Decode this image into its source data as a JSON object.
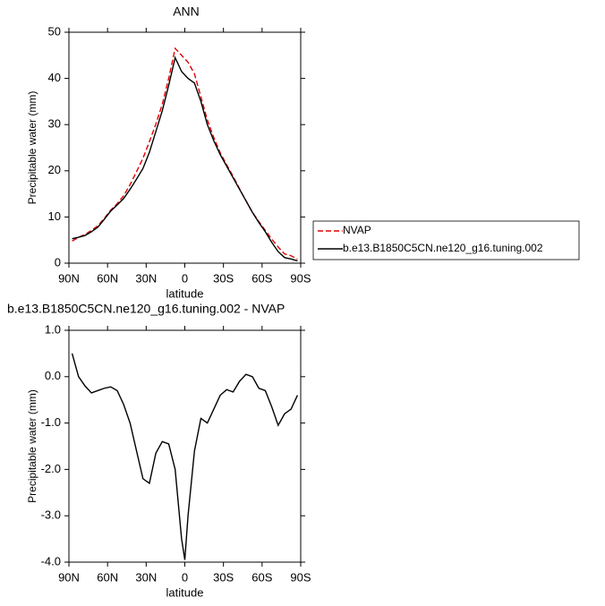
{
  "chart_data": [
    {
      "type": "line",
      "title": "ANN",
      "x_label": "latitude",
      "y_label": "Precipitable water (mm)",
      "x": [
        87.5,
        82.5,
        77.5,
        72.5,
        67.5,
        62.5,
        57.5,
        52.5,
        47.5,
        42.5,
        37.5,
        32.5,
        27.5,
        22.5,
        17.5,
        12.5,
        7.5,
        2.5,
        -2.5,
        -7.5,
        -12.5,
        -17.5,
        -22.5,
        -27.5,
        -32.5,
        -37.5,
        -42.5,
        -47.5,
        -52.5,
        -57.5,
        -62.5,
        -67.5,
        -72.5,
        -77.5,
        -82.5,
        -87.5
      ],
      "series": [
        {
          "name": "NVAP",
          "color": "#e00000",
          "dashed": true,
          "values": [
            4.8,
            5.6,
            6.2,
            7.1,
            8.1,
            9.7,
            11.5,
            12.9,
            14.6,
            17.0,
            19.8,
            22.7,
            26.3,
            30.1,
            34.4,
            40.0,
            46.5,
            45.0,
            43.5,
            41.0,
            36.0,
            31.0,
            27.2,
            23.9,
            21.3,
            18.8,
            16.1,
            13.5,
            11.0,
            9.0,
            7.1,
            5.2,
            3.5,
            2.0,
            1.6,
            0.9
          ]
        },
        {
          "name": "b.e13.B1850C5CN.ne120_g16.tuning.002",
          "color": "#000000",
          "dashed": false,
          "values": [
            5.3,
            5.6,
            6.0,
            6.8,
            7.8,
            9.5,
            11.3,
            12.6,
            14.0,
            16.0,
            18.2,
            20.5,
            24.0,
            28.5,
            33.0,
            38.5,
            44.5,
            41.5,
            40.0,
            39.0,
            35.0,
            30.0,
            26.5,
            23.5,
            21.0,
            18.5,
            16.0,
            13.5,
            11.0,
            8.8,
            6.8,
            4.5,
            2.5,
            1.2,
            0.9,
            0.5
          ]
        }
      ],
      "xlim": [
        90,
        -90
      ],
      "xticks": [
        {
          "value": 90,
          "label": "90N"
        },
        {
          "value": 60,
          "label": "60N"
        },
        {
          "value": 30,
          "label": "30N"
        },
        0,
        {
          "value": -30,
          "label": "30S"
        },
        {
          "value": -60,
          "label": "60S"
        },
        {
          "value": -90,
          "label": "90S"
        }
      ],
      "ylim": [
        0,
        50
      ],
      "yticks": [
        0,
        10,
        20,
        30,
        40,
        50
      ]
    },
    {
      "type": "line",
      "title": "b.e13.B1850C5CN.ne120_g16.tuning.002 - NVAP",
      "x_label": "latitude",
      "y_label": "Precipitable water (mm)",
      "x": [
        87.5,
        82.5,
        77.5,
        72.5,
        67.5,
        62.5,
        57.5,
        52.5,
        47.5,
        42.5,
        37.5,
        32.5,
        27.5,
        22.5,
        17.5,
        12.5,
        7.5,
        2.5,
        0,
        -2.5,
        -7.5,
        -12.5,
        -17.5,
        -22.5,
        -27.5,
        -32.5,
        -37.5,
        -42.5,
        -47.5,
        -52.5,
        -57.5,
        -62.5,
        -67.5,
        -72.5,
        -77.5,
        -82.5,
        -87.5
      ],
      "series": [
        {
          "color": "#000000",
          "dashed": false,
          "values": [
            0.5,
            0.0,
            -0.2,
            -0.35,
            -0.3,
            -0.25,
            -0.22,
            -0.3,
            -0.6,
            -1.0,
            -1.6,
            -2.2,
            -2.3,
            -1.65,
            -1.4,
            -1.45,
            -2.0,
            -3.5,
            -3.95,
            -3.0,
            -1.6,
            -0.9,
            -1.0,
            -0.7,
            -0.4,
            -0.28,
            -0.33,
            -0.1,
            0.05,
            0.0,
            -0.25,
            -0.3,
            -0.65,
            -1.05,
            -0.8,
            -0.7,
            -0.4
          ]
        }
      ],
      "xlim": [
        90,
        -90
      ],
      "xticks": [
        {
          "value": 90,
          "label": "90N"
        },
        {
          "value": 60,
          "label": "60N"
        },
        {
          "value": 30,
          "label": "30N"
        },
        0,
        {
          "value": -30,
          "label": "30S"
        },
        {
          "value": -60,
          "label": "60S"
        },
        {
          "value": -90,
          "label": "90S"
        }
      ],
      "ylim": [
        -4,
        1
      ],
      "yticks": [
        {
          "value": -4,
          "label": "-4.0"
        },
        {
          "value": -3,
          "label": "-3.0"
        },
        {
          "value": -2,
          "label": "-2.0"
        },
        {
          "value": -1,
          "label": "-1.0"
        },
        {
          "value": 0,
          "label": "0.0"
        },
        {
          "value": 1,
          "label": "1.0"
        }
      ]
    }
  ]
}
